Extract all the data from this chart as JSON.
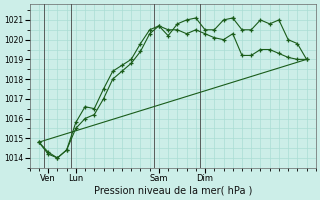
{
  "title": "Pression niveau de la mer( hPa )",
  "background_color": "#cceee8",
  "grid_color": "#aaddd4",
  "line_color": "#1a5c1a",
  "ylim": [
    1013.5,
    1021.8
  ],
  "yticks": [
    1014,
    1015,
    1016,
    1017,
    1018,
    1019,
    1020,
    1021
  ],
  "x_day_labels": [
    {
      "label": "Ven",
      "x": 1
    },
    {
      "label": "Lun",
      "x": 4
    },
    {
      "label": "Sam",
      "x": 13
    },
    {
      "label": "Dim",
      "x": 18
    }
  ],
  "x_vlines": [
    0.5,
    3.5,
    12.5,
    17.5
  ],
  "series1_x": [
    0,
    1,
    2,
    3,
    4,
    5,
    6,
    7,
    8,
    9,
    10,
    11,
    12,
    13,
    14,
    15,
    16,
    17,
    18,
    19,
    20,
    21
  ],
  "series1_y": [
    1014.8,
    1014.3,
    1014.0,
    1014.4,
    1015.8,
    1016.6,
    1016.5,
    1017.5,
    1018.4,
    1018.7,
    1019.0,
    1019.8,
    1020.5,
    1020.7,
    1020.2,
    1020.8,
    1021.0,
    1021.1,
    1020.5,
    1020.5,
    1021.0,
    1021.1
  ],
  "series1b_x": [
    21,
    22,
    23,
    24,
    25,
    26,
    27,
    28,
    29
  ],
  "series1b_y": [
    1021.1,
    1020.5,
    1020.5,
    1021.0,
    1020.8,
    1021.0,
    1020.0,
    1019.8,
    1019.0
  ],
  "series2_x": [
    0,
    1,
    2,
    3,
    4,
    5,
    6,
    7,
    8,
    9,
    10,
    11,
    12,
    13,
    14,
    15,
    16,
    17,
    18,
    19,
    20,
    21,
    22,
    23,
    24,
    25,
    26,
    27,
    28,
    29
  ],
  "series2_y": [
    1014.8,
    1014.2,
    1014.0,
    1014.4,
    1015.5,
    1016.0,
    1016.2,
    1017.0,
    1018.0,
    1018.4,
    1018.8,
    1019.4,
    1020.3,
    1020.7,
    1020.5,
    1020.5,
    1020.3,
    1020.5,
    1020.3,
    1020.1,
    1020.0,
    1020.3,
    1019.2,
    1019.2,
    1019.5,
    1019.5,
    1019.3,
    1019.1,
    1019.0,
    1019.0
  ],
  "series3_x": [
    0,
    29
  ],
  "series3_y": [
    1014.8,
    1019.0
  ],
  "xlim": [
    -1,
    30
  ],
  "xlim_plot": [
    -1,
    30
  ],
  "marker_size": 3.5
}
